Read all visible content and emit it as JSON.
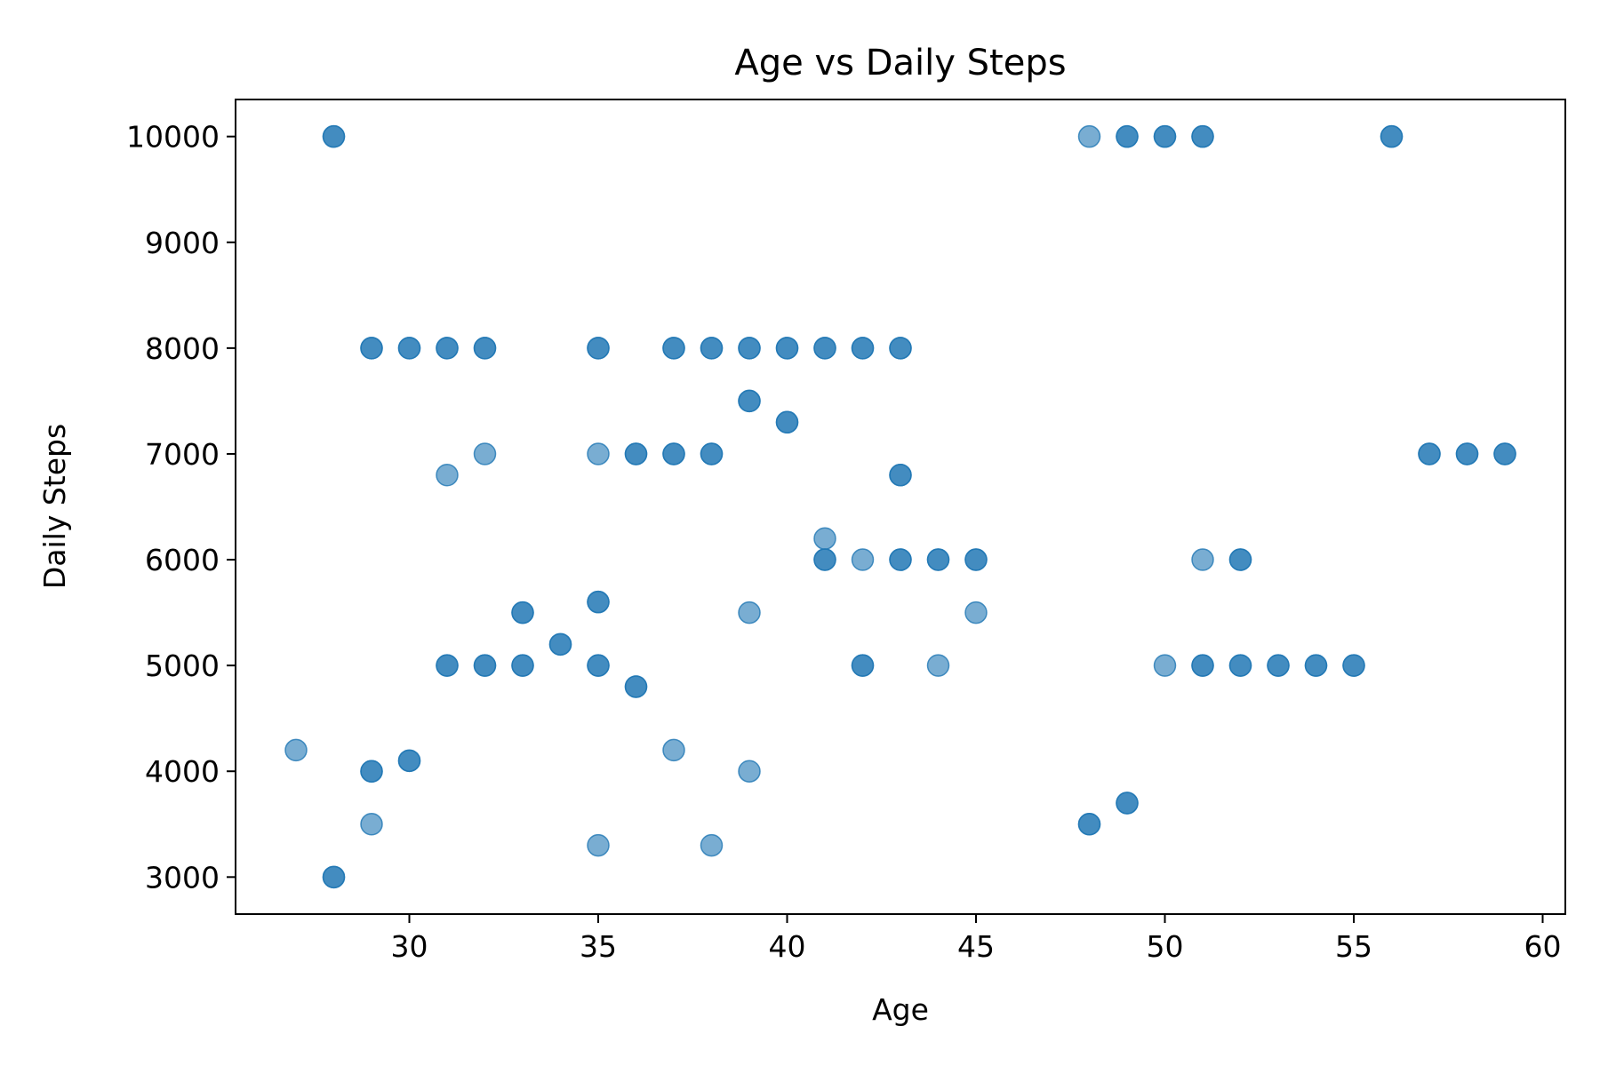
{
  "chart_data": {
    "type": "scatter",
    "title": "Age vs Daily Steps",
    "xlabel": "Age",
    "ylabel": "Daily Steps",
    "xlim": [
      25.4,
      60.6
    ],
    "ylim": [
      2650,
      10350
    ],
    "xticks": [
      30,
      35,
      40,
      45,
      50,
      55,
      60
    ],
    "yticks": [
      3000,
      4000,
      5000,
      6000,
      7000,
      8000,
      9000,
      10000
    ],
    "grid": false,
    "marker_color": "#1f77b4",
    "marker_opacity": 0.6,
    "series": [
      {
        "points": [
          [
            27,
            4200
          ],
          [
            28,
            10000
          ],
          [
            28,
            10000
          ],
          [
            28,
            3000
          ],
          [
            28,
            3000
          ],
          [
            29,
            8000
          ],
          [
            29,
            8000
          ],
          [
            29,
            4000
          ],
          [
            29,
            4000
          ],
          [
            29,
            3500
          ],
          [
            30,
            8000
          ],
          [
            30,
            8000
          ],
          [
            30,
            4100
          ],
          [
            30,
            4100
          ],
          [
            31,
            8000
          ],
          [
            31,
            8000
          ],
          [
            31,
            6800
          ],
          [
            31,
            5000
          ],
          [
            31,
            5000
          ],
          [
            32,
            8000
          ],
          [
            32,
            8000
          ],
          [
            32,
            7000
          ],
          [
            32,
            5000
          ],
          [
            32,
            5000
          ],
          [
            33,
            5500
          ],
          [
            33,
            5500
          ],
          [
            33,
            5000
          ],
          [
            33,
            5000
          ],
          [
            34,
            5200
          ],
          [
            34,
            5200
          ],
          [
            35,
            8000
          ],
          [
            35,
            8000
          ],
          [
            35,
            7000
          ],
          [
            35,
            5600
          ],
          [
            35,
            5600
          ],
          [
            35,
            5000
          ],
          [
            35,
            5000
          ],
          [
            35,
            3300
          ],
          [
            36,
            7000
          ],
          [
            36,
            7000
          ],
          [
            36,
            4800
          ],
          [
            36,
            4800
          ],
          [
            37,
            8000
          ],
          [
            37,
            8000
          ],
          [
            37,
            7000
          ],
          [
            37,
            7000
          ],
          [
            37,
            4200
          ],
          [
            38,
            8000
          ],
          [
            38,
            8000
          ],
          [
            38,
            7000
          ],
          [
            38,
            7000
          ],
          [
            38,
            3300
          ],
          [
            39,
            8000
          ],
          [
            39,
            8000
          ],
          [
            39,
            7500
          ],
          [
            39,
            7500
          ],
          [
            39,
            5500
          ],
          [
            39,
            4000
          ],
          [
            40,
            8000
          ],
          [
            40,
            8000
          ],
          [
            40,
            7300
          ],
          [
            40,
            7300
          ],
          [
            41,
            8000
          ],
          [
            41,
            8000
          ],
          [
            41,
            6200
          ],
          [
            41,
            6000
          ],
          [
            41,
            6000
          ],
          [
            42,
            8000
          ],
          [
            42,
            8000
          ],
          [
            42,
            6000
          ],
          [
            42,
            5000
          ],
          [
            42,
            5000
          ],
          [
            43,
            8000
          ],
          [
            43,
            8000
          ],
          [
            43,
            6800
          ],
          [
            43,
            6800
          ],
          [
            43,
            6000
          ],
          [
            43,
            6000
          ],
          [
            44,
            6000
          ],
          [
            44,
            6000
          ],
          [
            44,
            5000
          ],
          [
            45,
            6000
          ],
          [
            45,
            6000
          ],
          [
            45,
            5500
          ],
          [
            48,
            10000
          ],
          [
            48,
            3500
          ],
          [
            48,
            3500
          ],
          [
            49,
            10000
          ],
          [
            49,
            10000
          ],
          [
            49,
            3700
          ],
          [
            49,
            3700
          ],
          [
            50,
            10000
          ],
          [
            50,
            10000
          ],
          [
            50,
            5000
          ],
          [
            51,
            10000
          ],
          [
            51,
            10000
          ],
          [
            51,
            6000
          ],
          [
            51,
            5000
          ],
          [
            51,
            5000
          ],
          [
            52,
            6000
          ],
          [
            52,
            6000
          ],
          [
            52,
            5000
          ],
          [
            52,
            5000
          ],
          [
            53,
            5000
          ],
          [
            53,
            5000
          ],
          [
            54,
            5000
          ],
          [
            54,
            5000
          ],
          [
            55,
            5000
          ],
          [
            55,
            5000
          ],
          [
            56,
            10000
          ],
          [
            56,
            10000
          ],
          [
            57,
            7000
          ],
          [
            57,
            7000
          ],
          [
            58,
            7000
          ],
          [
            58,
            7000
          ],
          [
            59,
            7000
          ],
          [
            59,
            7000
          ]
        ]
      }
    ]
  }
}
